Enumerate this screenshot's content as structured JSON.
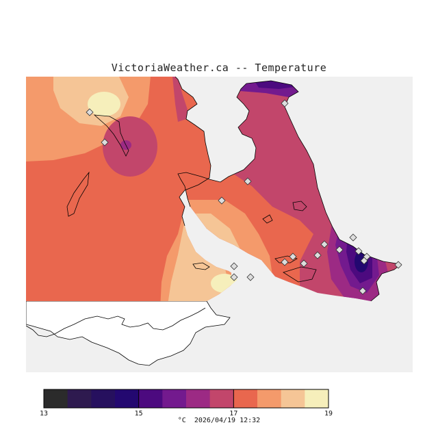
{
  "title": "VictoriaWeather.ca -- Temperature",
  "footer": {
    "unit": "°C",
    "timestamp": "2026/04/19 12:32"
  },
  "colorbar": {
    "min": 13,
    "max": 19,
    "tick_labels": [
      "13",
      "15",
      "17",
      "19"
    ],
    "tick_values": [
      13,
      15,
      17,
      19
    ],
    "colors": [
      "#2b2b2b",
      "#2e1a4f",
      "#26105e",
      "#230870",
      "#4c0a7f",
      "#731a8e",
      "#9c2a84",
      "#c2466b",
      "#e9674e",
      "#f49a6b",
      "#f5c596",
      "#f6efbb"
    ]
  },
  "map": {
    "land_color": "#ffffff",
    "water_color": "#f0f0f0",
    "outline_color": "#000000",
    "station_marker": "diamond"
  }
}
